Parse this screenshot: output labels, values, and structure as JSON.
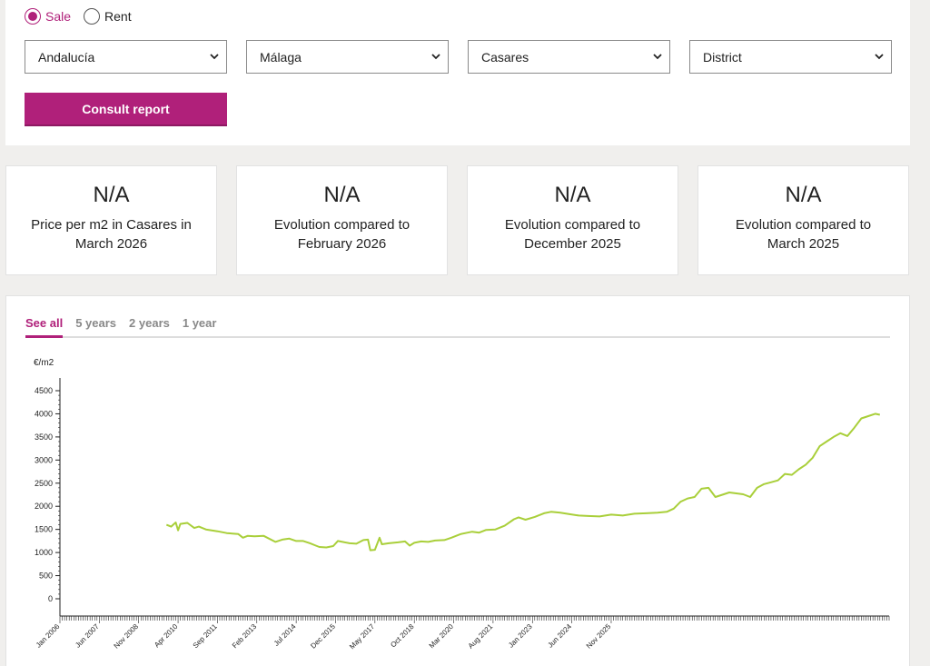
{
  "operation": {
    "options": [
      {
        "label": "Sale",
        "selected": true
      },
      {
        "label": "Rent",
        "selected": false
      }
    ]
  },
  "filters": {
    "region": "Andalucía",
    "province": "Málaga",
    "municipality": "Casares",
    "district": "District"
  },
  "consult_label": "Consult report",
  "kpis": [
    {
      "value": "N/A",
      "label": "Price per m2 in Casares in\nMarch 2026"
    },
    {
      "value": "N/A",
      "label": "Evolution compared to\nFebruary 2026"
    },
    {
      "value": "N/A",
      "label": "Evolution compared to\nDecember 2025"
    },
    {
      "value": "N/A",
      "label": "Evolution compared to\nMarch 2025"
    }
  ],
  "tabs": [
    {
      "label": "See all",
      "active": true
    },
    {
      "label": "5 years",
      "active": false
    },
    {
      "label": "2 years",
      "active": false
    },
    {
      "label": "1 year",
      "active": false
    }
  ],
  "colors": {
    "accent": "#b0207a",
    "line": "#a9cf3a"
  },
  "chart_data": {
    "type": "line",
    "ylabel": "€/m2",
    "ylim": [
      0,
      4500
    ],
    "yticks": [
      0,
      500,
      1000,
      1500,
      2000,
      2500,
      3000,
      3500,
      4000,
      4500
    ],
    "x_tick_labels": [
      "Jan 2006",
      "Jun 2007",
      "Nov 2008",
      "Apr 2010",
      "Sep 2011",
      "Feb 2013",
      "Jul 2014",
      "Dec 2015",
      "May 2017",
      "Oct 2018",
      "Mar 2020",
      "Aug 2021",
      "Jan 2023",
      "Jun 2024",
      "Nov 2025"
    ],
    "series": [
      {
        "values": [
          [
            "2009-11",
            1600
          ],
          [
            "2010-01",
            1560
          ],
          [
            "2010-03",
            1650
          ],
          [
            "2010-04",
            1480
          ],
          [
            "2010-05",
            1620
          ],
          [
            "2010-08",
            1640
          ],
          [
            "2010-11",
            1530
          ],
          [
            "2011-01",
            1560
          ],
          [
            "2011-04",
            1500
          ],
          [
            "2011-09",
            1460
          ],
          [
            "2012-01",
            1420
          ],
          [
            "2012-06",
            1400
          ],
          [
            "2012-08",
            1320
          ],
          [
            "2012-10",
            1360
          ],
          [
            "2013-01",
            1350
          ],
          [
            "2013-05",
            1360
          ],
          [
            "2013-10",
            1230
          ],
          [
            "2014-01",
            1280
          ],
          [
            "2014-04",
            1300
          ],
          [
            "2014-07",
            1250
          ],
          [
            "2014-10",
            1250
          ],
          [
            "2015-01",
            1200
          ],
          [
            "2015-03",
            1160
          ],
          [
            "2015-05",
            1120
          ],
          [
            "2015-08",
            1110
          ],
          [
            "2015-11",
            1140
          ],
          [
            "2016-01",
            1250
          ],
          [
            "2016-03",
            1230
          ],
          [
            "2016-06",
            1200
          ],
          [
            "2016-09",
            1190
          ],
          [
            "2016-12",
            1270
          ],
          [
            "2017-02",
            1280
          ],
          [
            "2017-03",
            1050
          ],
          [
            "2017-05",
            1060
          ],
          [
            "2017-07",
            1320
          ],
          [
            "2017-08",
            1180
          ],
          [
            "2017-11",
            1200
          ],
          [
            "2018-03",
            1220
          ],
          [
            "2018-06",
            1240
          ],
          [
            "2018-08",
            1150
          ],
          [
            "2018-10",
            1210
          ],
          [
            "2019-01",
            1240
          ],
          [
            "2019-04",
            1230
          ],
          [
            "2019-07",
            1260
          ],
          [
            "2019-11",
            1270
          ],
          [
            "2020-02",
            1320
          ],
          [
            "2020-06",
            1400
          ],
          [
            "2020-11",
            1450
          ],
          [
            "2021-02",
            1430
          ],
          [
            "2021-05",
            1490
          ],
          [
            "2021-09",
            1500
          ],
          [
            "2022-01",
            1580
          ],
          [
            "2022-05",
            1720
          ],
          [
            "2022-07",
            1760
          ],
          [
            "2022-10",
            1710
          ],
          [
            "2023-02",
            1770
          ],
          [
            "2023-06",
            1850
          ],
          [
            "2023-09",
            1880
          ],
          [
            "2024-01",
            1860
          ],
          [
            "2024-05",
            1830
          ],
          [
            "2024-09",
            1800
          ],
          [
            "2025-01",
            1790
          ],
          [
            "2025-06",
            1780
          ],
          [
            "2025-11",
            1820
          ],
          [
            "2026-04",
            1800
          ],
          [
            "2026-09",
            1840
          ],
          [
            "2027-02",
            1850
          ],
          [
            "2027-07",
            1860
          ],
          [
            "2027-11",
            1880
          ],
          [
            "2028-02",
            1950
          ],
          [
            "2028-05",
            2100
          ],
          [
            "2028-08",
            2170
          ],
          [
            "2028-11",
            2200
          ],
          [
            "2029-02",
            2380
          ],
          [
            "2029-05",
            2400
          ],
          [
            "2029-08",
            2200
          ],
          [
            "2029-11",
            2250
          ],
          [
            "2030-02",
            2300
          ],
          [
            "2030-05",
            2280
          ],
          [
            "2030-08",
            2260
          ],
          [
            "2030-11",
            2200
          ],
          [
            "2031-02",
            2400
          ],
          [
            "2031-05",
            2480
          ],
          [
            "2031-08",
            2520
          ],
          [
            "2031-11",
            2560
          ],
          [
            "2032-02",
            2700
          ],
          [
            "2032-05",
            2680
          ],
          [
            "2032-08",
            2800
          ],
          [
            "2032-11",
            2900
          ],
          [
            "2033-02",
            3050
          ],
          [
            "2033-05",
            3300
          ],
          [
            "2033-08",
            3400
          ],
          [
            "2033-11",
            3500
          ],
          [
            "2034-02",
            3580
          ],
          [
            "2034-05",
            3520
          ],
          [
            "2034-08",
            3700
          ],
          [
            "2034-11",
            3900
          ],
          [
            "2035-02",
            3950
          ],
          [
            "2035-05",
            4000
          ],
          [
            "2035-07",
            3980
          ]
        ]
      }
    ]
  }
}
